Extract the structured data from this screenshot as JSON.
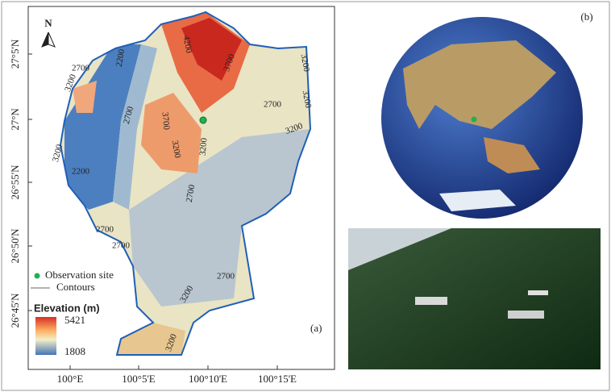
{
  "map_a": {
    "panel_label": "(a)",
    "north": "N",
    "longitude_ticks": [
      "100°E",
      "100°5'E",
      "100°10'E",
      "100°15'E"
    ],
    "latitude_ticks": [
      "27°5'N",
      "27°N",
      "26°55'N",
      "26°50'N",
      "26°45'N"
    ],
    "contour_labels": [
      3200,
      2700,
      2200,
      4200,
      3700,
      3200,
      3200,
      2700,
      3700,
      3200,
      3200,
      2700,
      3200,
      3200,
      2200,
      2700,
      2700,
      2700,
      2700,
      3200,
      3200
    ],
    "legend": {
      "observation_site": "Observation site",
      "contours": "Contours"
    },
    "elevation": {
      "title": "Elevation (m)",
      "max": 5421,
      "min": 1808
    }
  },
  "map_b": {
    "panel_label": "(b)"
  }
}
